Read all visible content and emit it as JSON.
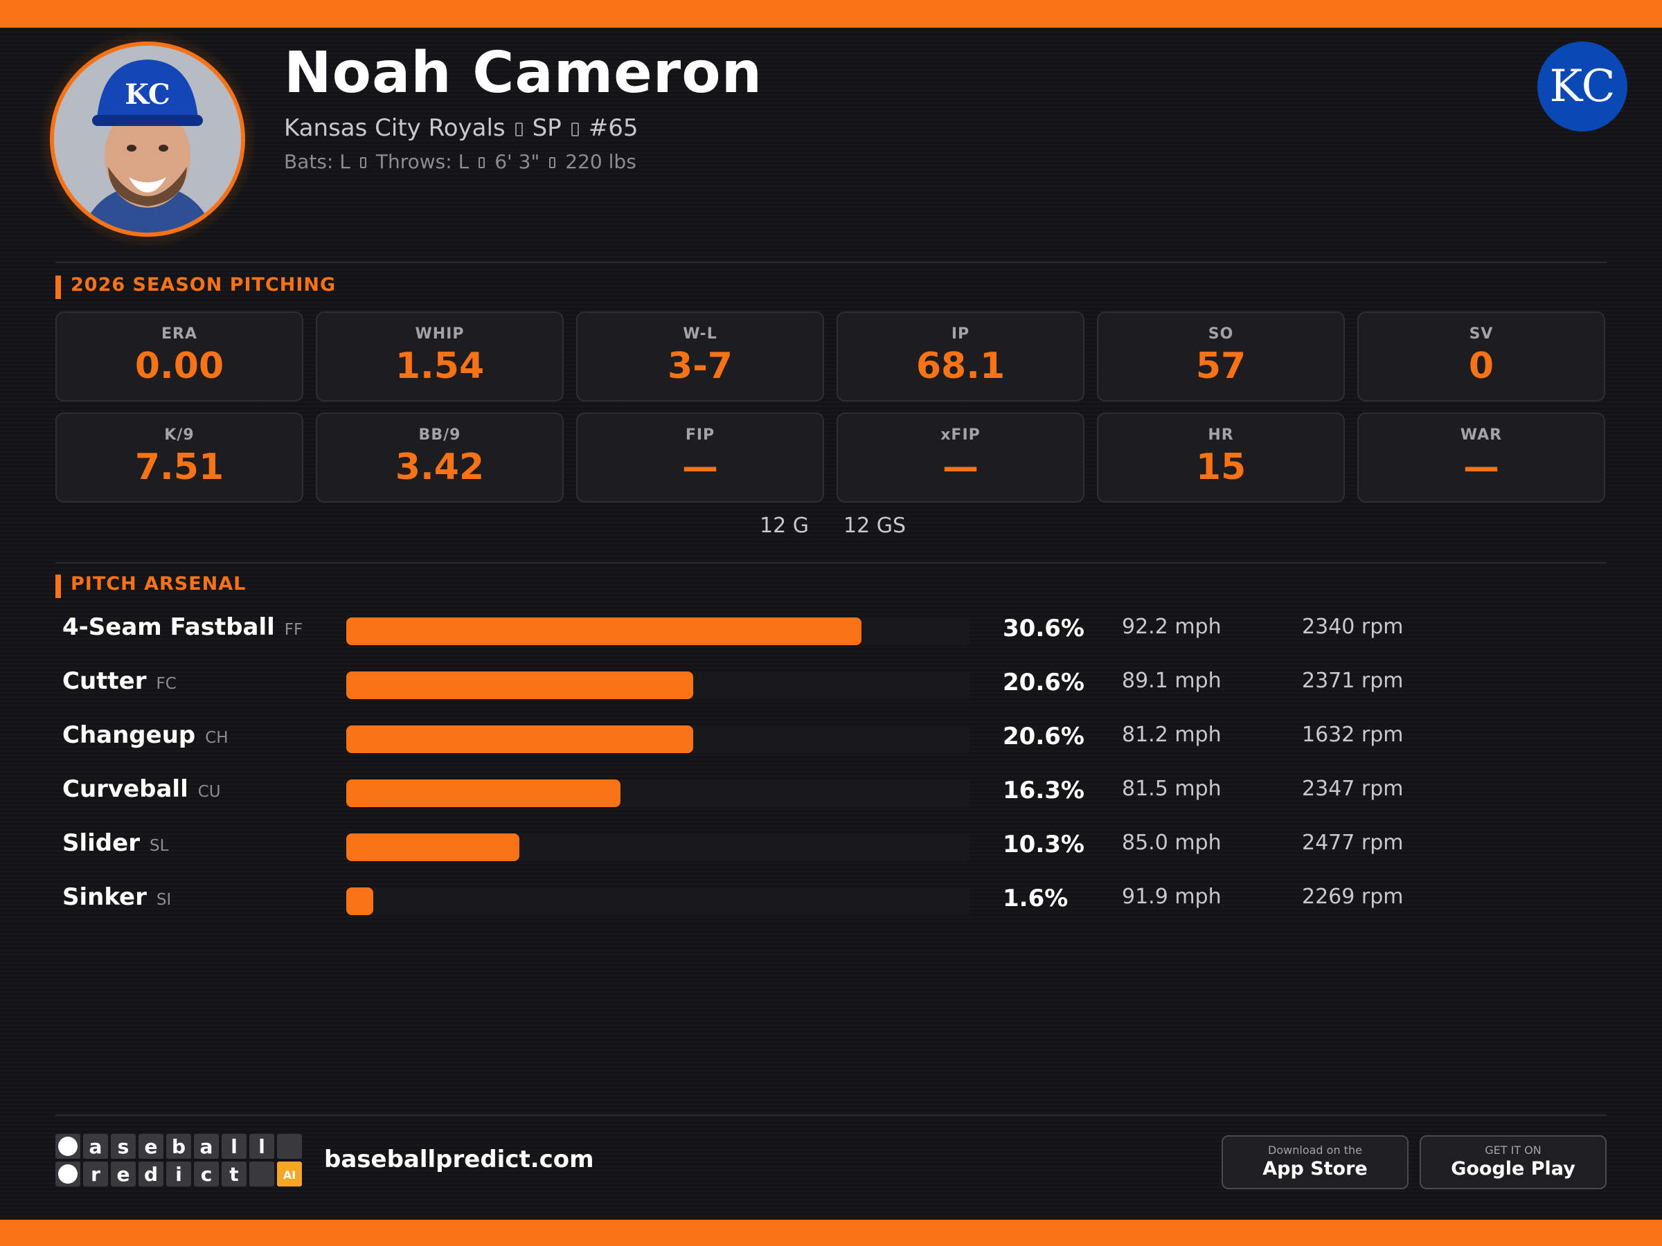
{
  "player": {
    "name": "Noah Cameron",
    "team": "Kansas City Royals",
    "position": "SP",
    "number": "#65",
    "bats": "Bats: L",
    "throws": "Throws: L",
    "height": "6' 3\"",
    "weight": "220 lbs",
    "cap_logo_text": "KC"
  },
  "team_logo_text": "KC",
  "colors": {
    "accent": "#f97316",
    "royals_blue": "#0a49b5",
    "background": "#141416",
    "card": "#1d1d20"
  },
  "season": {
    "title": "2026 SEASON PITCHING",
    "stats": [
      {
        "label": "ERA",
        "value": "0.00"
      },
      {
        "label": "WHIP",
        "value": "1.54"
      },
      {
        "label": "W-L",
        "value": "3-7"
      },
      {
        "label": "IP",
        "value": "68.1"
      },
      {
        "label": "SO",
        "value": "57"
      },
      {
        "label": "SV",
        "value": "0"
      },
      {
        "label": "K/9",
        "value": "7.51"
      },
      {
        "label": "BB/9",
        "value": "3.42"
      },
      {
        "label": "FIP",
        "value": "—"
      },
      {
        "label": "xFIP",
        "value": "—"
      },
      {
        "label": "HR",
        "value": "15"
      },
      {
        "label": "WAR",
        "value": "—"
      }
    ],
    "games": "12 G",
    "games_started": "12 GS"
  },
  "arsenal": {
    "title": "PITCH ARSENAL",
    "pitches": [
      {
        "name": "4-Seam Fastball",
        "code": "FF",
        "usage": 30.6,
        "pct": "30.6%",
        "velo": "92.2 mph",
        "spin": "2340 rpm"
      },
      {
        "name": "Cutter",
        "code": "FC",
        "usage": 20.6,
        "pct": "20.6%",
        "velo": "89.1 mph",
        "spin": "2371 rpm"
      },
      {
        "name": "Changeup",
        "code": "CH",
        "usage": 20.6,
        "pct": "20.6%",
        "velo": "81.2 mph",
        "spin": "1632 rpm"
      },
      {
        "name": "Curveball",
        "code": "CU",
        "usage": 16.3,
        "pct": "16.3%",
        "velo": "81.5 mph",
        "spin": "2347 rpm"
      },
      {
        "name": "Slider",
        "code": "SL",
        "usage": 10.3,
        "pct": "10.3%",
        "velo": "85.0 mph",
        "spin": "2477 rpm"
      },
      {
        "name": "Sinker",
        "code": "SI",
        "usage": 1.6,
        "pct": "1.6%",
        "velo": "91.9 mph",
        "spin": "2269 rpm"
      }
    ]
  },
  "footer": {
    "brand_word1": "baseball",
    "brand_word2": "predict",
    "brand_badge": "AI",
    "url": "baseballpredict.com",
    "app_store_small": "Download on the",
    "app_store_big": "App Store",
    "google_small": "GET IT ON",
    "google_big": "Google Play"
  }
}
